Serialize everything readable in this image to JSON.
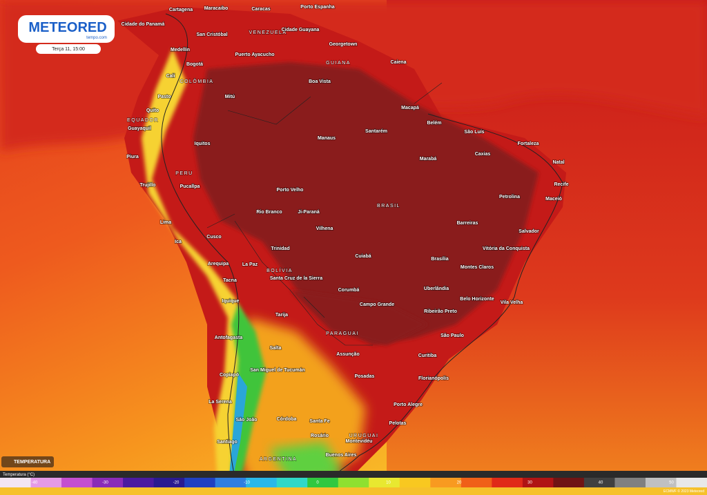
{
  "header": {
    "logo": "METEORED",
    "logo_sub": "tempo.com",
    "time": "Terça 11, 15:00"
  },
  "countries": [
    "VENEZUELA",
    "GUIANA",
    "COLÔMBIA",
    "EQUADOR",
    "PERU",
    "BRASIL",
    "BOLÍVIA",
    "PARAGUAI",
    "URUGUAI",
    "ARGENTINA"
  ],
  "cities": [
    "Cartagena",
    "Maracaibo",
    "Caracas",
    "Porto Espanha",
    "Cidade do Panamá",
    "San Cristóbal",
    "Cidade Guayana",
    "Georgetown",
    "Medellín",
    "Puerto Ayacucho",
    "Bogotá",
    "Caiena",
    "Cali",
    "Boa Vista",
    "Pasto",
    "Mitú",
    "Quito",
    "Macapá",
    "Belém",
    "Guayaquil",
    "Santarém",
    "São Luís",
    "Manaus",
    "Iquitos",
    "Fortaleza",
    "Caxias",
    "Marabá",
    "Piura",
    "Natal",
    "Recife",
    "Trujillo",
    "Pucallpa",
    "Porto Velho",
    "Petrolina",
    "Maceió",
    "Rio Branco",
    "Ji-Paraná",
    "Lima",
    "Barreiras",
    "Vilhena",
    "Salvador",
    "Cusco",
    "Ica",
    "Vitória da Conquista",
    "Trinidad",
    "Cuiabá",
    "Brasília",
    "Montes Claros",
    "Arequipa",
    "La Paz",
    "Santa Cruz de la Sierra",
    "Tacna",
    "Uberlândia",
    "Corumbá",
    "Belo Horizonte",
    "Vila Velha",
    "Campo Grande",
    "Iquique",
    "Ribeirão Preto",
    "Tarija",
    "São Paulo",
    "Antofagasta",
    "Salta",
    "Assunção",
    "Curitiba",
    "San Miguel de Tucumán",
    "Copiapó",
    "Posadas",
    "Florianópolis",
    "La Serena",
    "Porto Alegre",
    "São João",
    "Córdoba",
    "Santa Fe",
    "Pelotas",
    "Rosário",
    "Santiago",
    "Montevidéu",
    "Buenos Aires"
  ],
  "legend": {
    "badge": "TEMPERATURA",
    "title": "Temperatura (°C)",
    "ticks": [
      -40,
      -30,
      -20,
      -10,
      0,
      10,
      20,
      30,
      40,
      50
    ]
  },
  "credit": "ECMWF © 2023 Meteored"
}
